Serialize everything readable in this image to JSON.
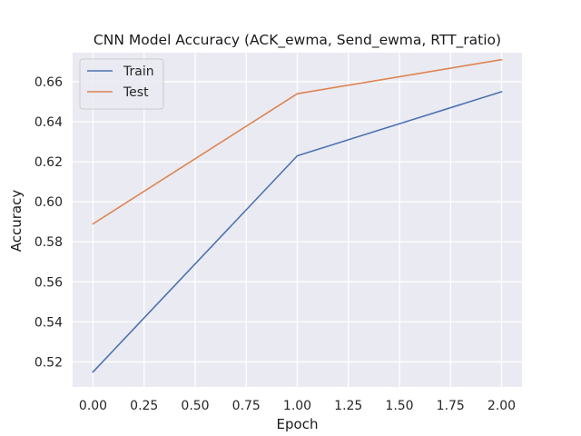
{
  "chart_data": {
    "type": "line",
    "title": "CNN Model Accuracy (ACK_ewma, Send_ewma, RTT_ratio)",
    "xlabel": "Epoch",
    "ylabel": "Accuracy",
    "x": [
      0,
      1,
      2
    ],
    "xlim": [
      -0.1,
      2.1
    ],
    "ylim": [
      0.5075,
      0.6745
    ],
    "xticks": [
      "0.00",
      "0.25",
      "0.50",
      "0.75",
      "1.00",
      "1.25",
      "1.50",
      "1.75",
      "2.00"
    ],
    "yticks": [
      "0.52",
      "0.54",
      "0.56",
      "0.58",
      "0.60",
      "0.62",
      "0.64",
      "0.66"
    ],
    "grid": true,
    "background": "#eaeaf2",
    "legend_position": "upper-left",
    "series": [
      {
        "name": "Train",
        "color": "#4c72b0",
        "values": [
          0.515,
          0.623,
          0.655
        ]
      },
      {
        "name": "Test",
        "color": "#dd8452",
        "values": [
          0.589,
          0.654,
          0.671
        ]
      }
    ]
  }
}
